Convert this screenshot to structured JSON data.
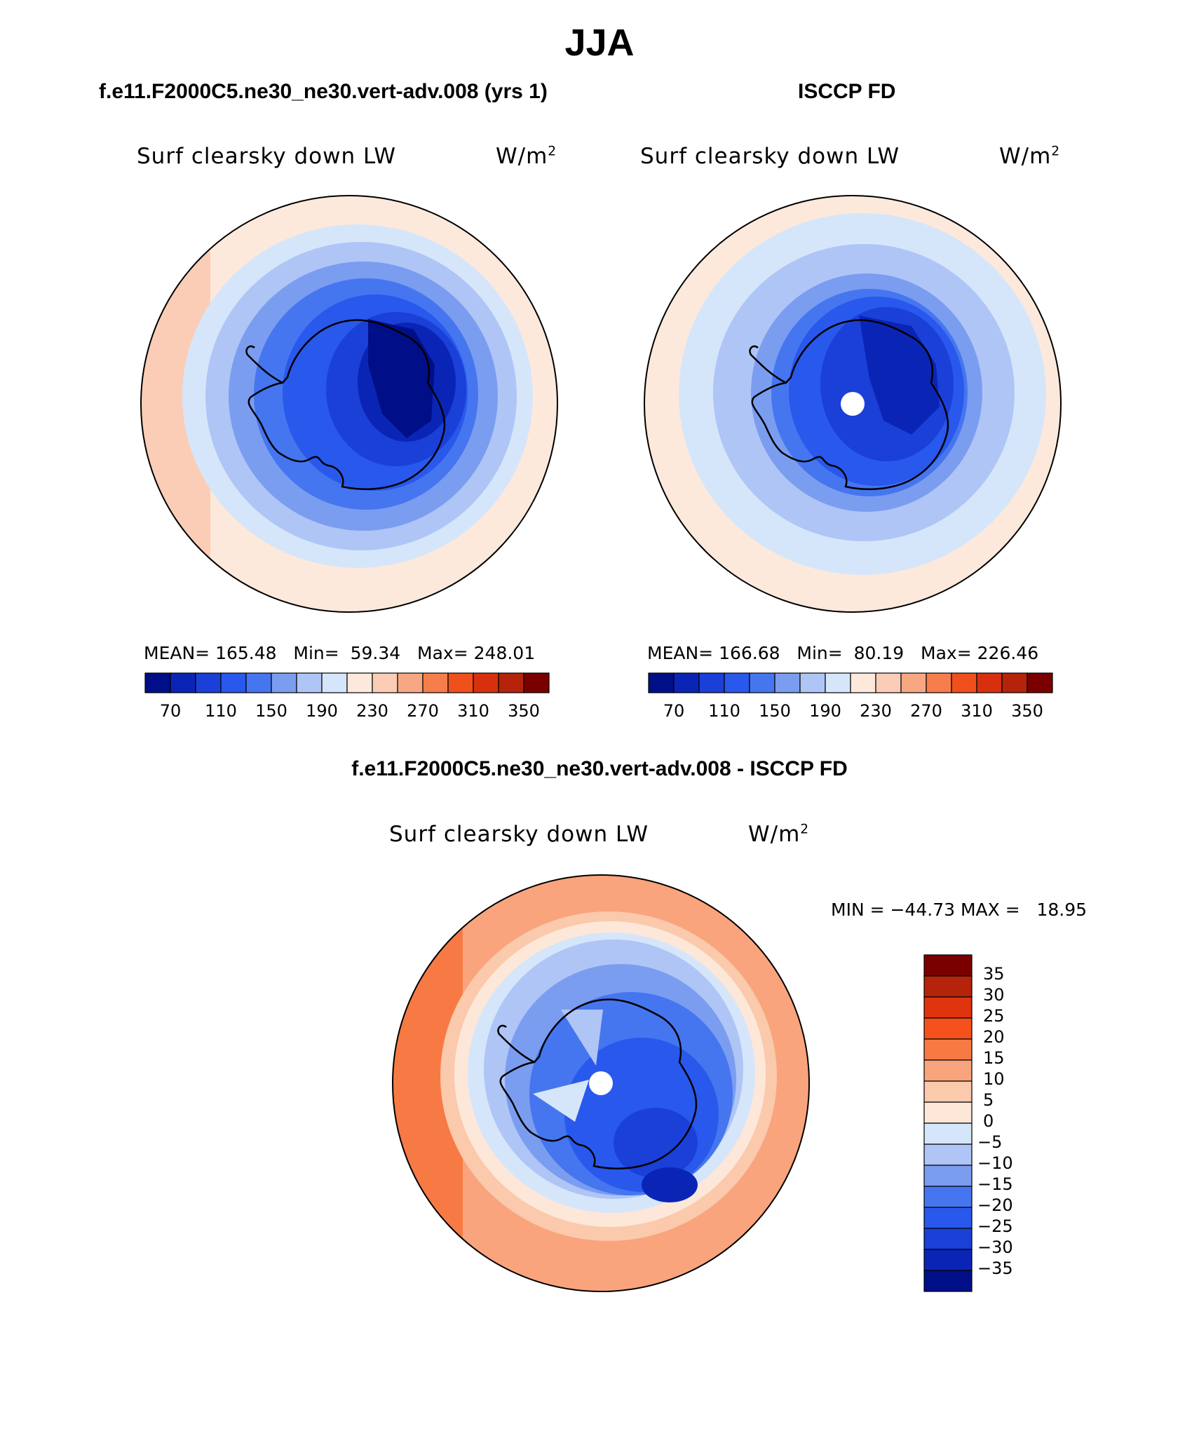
{
  "season_title": "JJA",
  "panels": [
    {
      "case_label": "f.e11.F2000C5.ne30_ne30.vert-adv.008 (yrs 1)",
      "variable_label": "Surf clearsky down LW",
      "units_base": "W/m",
      "units_exp": "2",
      "mean_label": "MEAN=",
      "mean_value": "165.48",
      "min_label": "Min=",
      "min_value": "59.34",
      "max_label": "Max=",
      "max_value": "248.01",
      "ticks": [
        "70",
        "110",
        "150",
        "190",
        "230",
        "270",
        "310",
        "350"
      ]
    },
    {
      "case_label": "ISCCP FD",
      "variable_label": "Surf clearsky down LW",
      "units_base": "W/m",
      "units_exp": "2",
      "mean_label": "MEAN=",
      "mean_value": "166.68",
      "min_label": "Min=",
      "min_value": "80.19",
      "max_label": "Max=",
      "max_value": "226.46",
      "ticks": [
        "70",
        "110",
        "150",
        "190",
        "230",
        "270",
        "310",
        "350"
      ]
    }
  ],
  "difference": {
    "case_label": "f.e11.F2000C5.ne30_ne30.vert-adv.008 - ISCCP FD",
    "variable_label": "Surf clearsky down LW",
    "units_base": "W/m",
    "units_exp": "2",
    "minmax_label": "MIN = −44.73 MAX =   18.95",
    "ticks": [
      "35",
      "30",
      "25",
      "20",
      "15",
      "10",
      "5",
      "0",
      "−5",
      "−10",
      "−15",
      "−20",
      "−25",
      "−30",
      "−35"
    ]
  },
  "colors": {
    "field_scale": [
      "#000f87",
      "#0a25b6",
      "#1a40d8",
      "#2958ec",
      "#4576f0",
      "#7b9df0",
      "#afc5f6",
      "#d6e6fa",
      "#fde9db",
      "#fbcdb6",
      "#f8a783",
      "#f57e4c",
      "#f0501c",
      "#d8300e",
      "#b4230a",
      "#7a0000"
    ],
    "diff_scale": [
      "#7a0000",
      "#b4230a",
      "#e0340f",
      "#f4511d",
      "#f77a45",
      "#f9a47d",
      "#fbc9ab",
      "#fde7d9",
      "#d6e6fa",
      "#afc5f6",
      "#7b9df0",
      "#4576f0",
      "#2958ec",
      "#1a40d8",
      "#0a25b6",
      "#000f87"
    ]
  }
}
